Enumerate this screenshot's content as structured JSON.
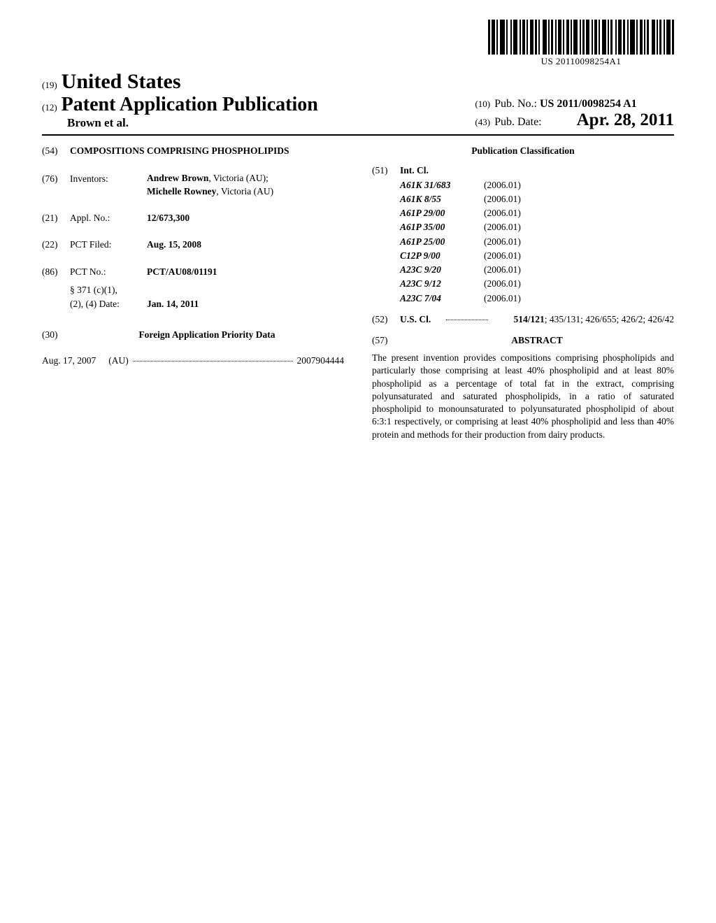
{
  "barcode_text": "US 20110098254A1",
  "country_prefix": "(19)",
  "country": "United States",
  "pub_prefix": "(12)",
  "pub_title": "Patent Application Publication",
  "authors": "Brown et al.",
  "pub_no_prefix": "(10)",
  "pub_no_label": "Pub. No.:",
  "pub_no_value": "US 2011/0098254 A1",
  "pub_date_prefix": "(43)",
  "pub_date_label": "Pub. Date:",
  "pub_date_value": "Apr. 28, 2011",
  "title_code": "(54)",
  "invention_title": "COMPOSITIONS COMPRISING PHOSPHOLIPIDS",
  "inventors_code": "(76)",
  "inventors_label": "Inventors:",
  "inventor1_name": "Andrew Brown",
  "inventor1_loc": ", Victoria (AU);",
  "inventor2_name": "Michelle Rowney",
  "inventor2_loc": ", Victoria (AU)",
  "applno_code": "(21)",
  "applno_label": "Appl. No.:",
  "applno_value": "12/673,300",
  "pctfiled_code": "(22)",
  "pctfiled_label": "PCT Filed:",
  "pctfiled_value": "Aug. 15, 2008",
  "pctno_code": "(86)",
  "pctno_label": "PCT No.:",
  "pctno_value": "PCT/AU08/01191",
  "section371_label": "§ 371 (c)(1),",
  "section371_date_label": "(2), (4) Date:",
  "section371_date_value": "Jan. 14, 2011",
  "foreign_code": "(30)",
  "foreign_header": "Foreign Application Priority Data",
  "foreign_date": "Aug. 17, 2007",
  "foreign_country": "(AU)",
  "foreign_number": "2007904444",
  "classification_header": "Publication Classification",
  "intcl_code": "(51)",
  "intcl_label": "Int. Cl.",
  "intcl": [
    {
      "code": "A61K 31/683",
      "year": "(2006.01)"
    },
    {
      "code": "A61K 8/55",
      "year": "(2006.01)"
    },
    {
      "code": "A61P 29/00",
      "year": "(2006.01)"
    },
    {
      "code": "A61P 35/00",
      "year": "(2006.01)"
    },
    {
      "code": "A61P 25/00",
      "year": "(2006.01)"
    },
    {
      "code": "C12P 9/00",
      "year": "(2006.01)"
    },
    {
      "code": "A23C 9/20",
      "year": "(2006.01)"
    },
    {
      "code": "A23C 9/12",
      "year": "(2006.01)"
    },
    {
      "code": "A23C 7/04",
      "year": "(2006.01)"
    }
  ],
  "uscl_code": "(52)",
  "uscl_label": "U.S. Cl.",
  "uscl_first": "514/121",
  "uscl_rest": "; 435/131; 426/655; 426/2; 426/42",
  "abstract_code": "(57)",
  "abstract_header": "ABSTRACT",
  "abstract_text": "The present invention provides compositions comprising phospholipids and particularly those comprising at least 40% phospholipid and at least 80% phospholipid as a percentage of total fat in the extract, comprising polyunsaturated and saturated phospholipids, in a ratio of saturated phospholipid to monounsaturated to polyunsaturated phospholipid of about 6:3:1 respectively, or comprising at least 40% phospholipid and less than 40% protein and methods for their production from dairy products."
}
